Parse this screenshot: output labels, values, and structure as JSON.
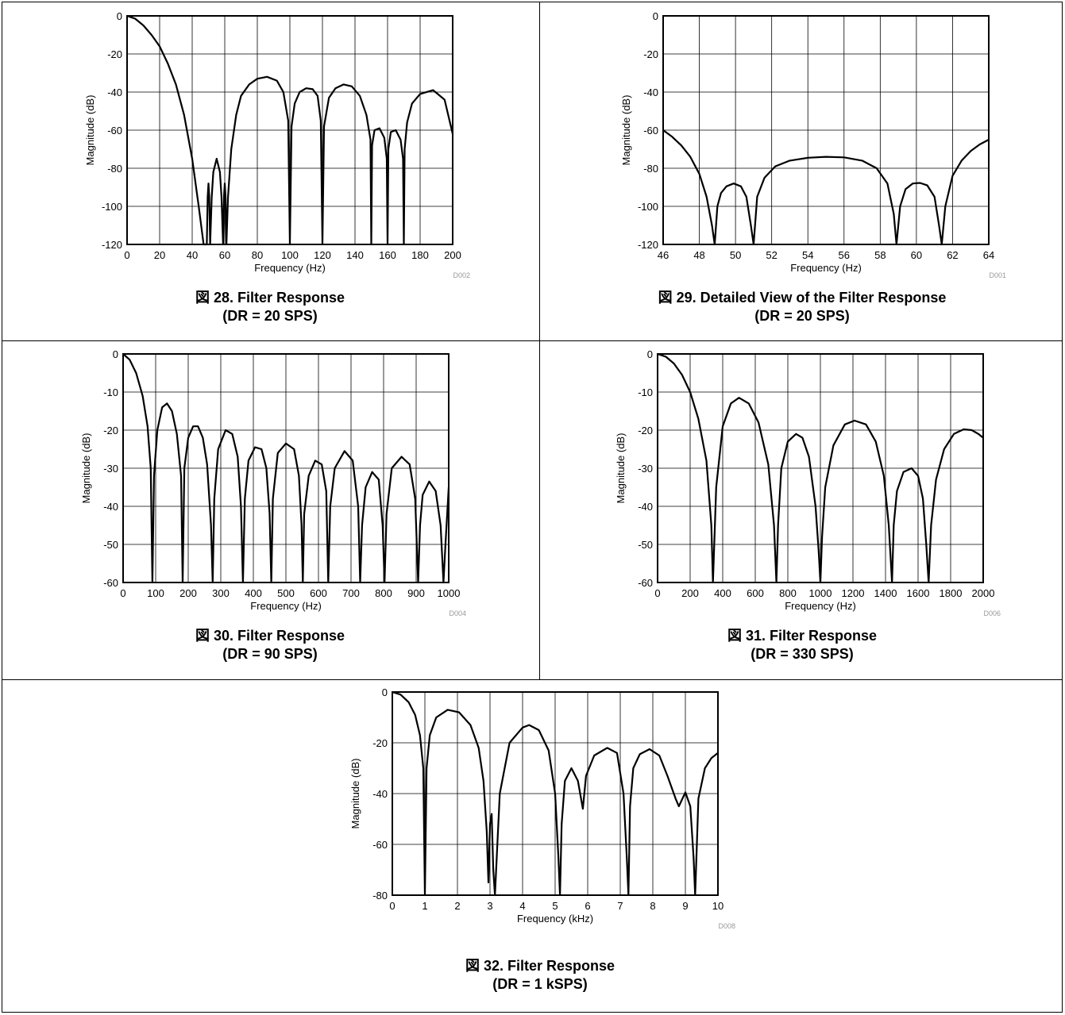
{
  "chart_data": [
    {
      "type": "line",
      "caption_line1": "図 28. Filter Response",
      "caption_line2": "(DR = 20 SPS)",
      "xlabel": "Frequency (Hz)",
      "ylabel": "Magnitude (dB)",
      "code": "D002",
      "xlim": [
        0,
        200
      ],
      "ylim": [
        -120,
        0
      ],
      "xticks": [
        0,
        20,
        40,
        60,
        80,
        100,
        120,
        140,
        160,
        180,
        200
      ],
      "yticks": [
        0,
        -20,
        -40,
        -60,
        -80,
        -100,
        -120
      ],
      "series": [
        {
          "x": [
            0,
            5,
            10,
            15,
            20,
            25,
            30,
            35,
            40,
            44,
            47,
            49,
            49.5,
            50,
            50.5,
            51,
            52,
            53,
            55,
            57,
            58,
            59,
            59.5,
            60,
            60.5,
            61,
            62,
            64,
            67,
            70,
            75,
            80,
            86,
            92,
            96,
            99,
            100,
            101,
            103,
            106,
            110,
            114,
            117,
            119,
            120,
            121,
            124,
            128,
            133,
            138,
            143,
            147,
            149.5,
            150,
            150.5,
            152,
            155,
            158,
            159.5,
            160,
            160.5,
            162,
            165,
            168,
            169.5,
            170,
            170.5,
            172,
            175,
            180,
            188,
            195,
            200
          ],
          "y": [
            0,
            -1.5,
            -5,
            -10,
            -16,
            -25,
            -36,
            -52,
            -75,
            -100,
            -120,
            -120,
            -95,
            -88,
            -95,
            -120,
            -95,
            -82,
            -75,
            -82,
            -95,
            -120,
            -95,
            -88,
            -95,
            -120,
            -95,
            -70,
            -52,
            -42,
            -36,
            -33,
            -32,
            -34,
            -40,
            -55,
            -120,
            -58,
            -46,
            -40,
            -38,
            -38.5,
            -42,
            -55,
            -120,
            -58,
            -43,
            -38,
            -36,
            -37,
            -42,
            -52,
            -65,
            -120,
            -68,
            -60,
            -59,
            -64,
            -75,
            -120,
            -70,
            -61,
            -60,
            -65,
            -75,
            -120,
            -70,
            -56,
            -46,
            -41,
            -39,
            -44,
            -62
          ]
        }
      ]
    },
    {
      "type": "line",
      "caption_line1": "図 29. Detailed View of the Filter Response",
      "caption_line2": "(DR = 20 SPS)",
      "xlabel": "Frequency (Hz)",
      "ylabel": "Magnitude (dB)",
      "code": "D001",
      "xlim": [
        46,
        64
      ],
      "ylim": [
        -120,
        0
      ],
      "xticks": [
        46,
        48,
        50,
        52,
        54,
        56,
        58,
        60,
        62,
        64
      ],
      "yticks": [
        0,
        -20,
        -40,
        -60,
        -80,
        -100,
        -120
      ],
      "series": [
        {
          "x": [
            46,
            46.5,
            47,
            47.5,
            48,
            48.4,
            48.7,
            48.85,
            49,
            49.2,
            49.5,
            49.9,
            50.3,
            50.6,
            50.85,
            51,
            51.2,
            51.6,
            52.2,
            53,
            54,
            55,
            56,
            57,
            57.8,
            58.4,
            58.75,
            58.9,
            59.1,
            59.4,
            59.8,
            60.2,
            60.6,
            61,
            61.25,
            61.4,
            61.6,
            62,
            62.5,
            63,
            63.5,
            64
          ],
          "y": [
            -60,
            -63.5,
            -68,
            -74,
            -83,
            -95,
            -110,
            -120,
            -100,
            -93,
            -89.5,
            -88,
            -89.5,
            -95,
            -110,
            -120,
            -95,
            -85,
            -79,
            -76,
            -74.5,
            -74,
            -74.3,
            -76,
            -80,
            -88,
            -104,
            -120,
            -100,
            -91,
            -88,
            -87.7,
            -89,
            -95,
            -110,
            -120,
            -100,
            -84,
            -76,
            -71,
            -67.5,
            -65
          ]
        }
      ]
    },
    {
      "type": "line",
      "caption_line1": "図 30. Filter Response",
      "caption_line2": "(DR = 90 SPS)",
      "xlabel": "Frequency (Hz)",
      "ylabel": "Magnitude (dB)",
      "code": "D004",
      "xlim": [
        0,
        1000
      ],
      "ylim": [
        -60,
        0
      ],
      "xticks": [
        0,
        100,
        200,
        300,
        400,
        500,
        600,
        700,
        800,
        900,
        1000
      ],
      "yticks": [
        0,
        -10,
        -20,
        -30,
        -40,
        -50,
        -60
      ],
      "series": [
        {
          "x": [
            0,
            20,
            40,
            60,
            75,
            85,
            90,
            95,
            105,
            120,
            135,
            150,
            165,
            178,
            183,
            188,
            200,
            215,
            230,
            245,
            258,
            270,
            275,
            280,
            292,
            315,
            335,
            352,
            362,
            368,
            374,
            385,
            405,
            425,
            440,
            450,
            455,
            460,
            475,
            500,
            525,
            540,
            548,
            552,
            556,
            570,
            590,
            610,
            624,
            630,
            636,
            650,
            680,
            705,
            722,
            728,
            734,
            745,
            765,
            785,
            797,
            803,
            809,
            825,
            855,
            880,
            897,
            906,
            912,
            920,
            940,
            960,
            975,
            984,
            990,
            1000
          ],
          "y": [
            0,
            -1.5,
            -5,
            -11,
            -19,
            -30,
            -60,
            -32,
            -20,
            -14,
            -13,
            -15,
            -21,
            -32,
            -60,
            -30,
            -22,
            -19,
            -19,
            -22,
            -29,
            -45,
            -60,
            -38,
            -25,
            -20,
            -21,
            -27,
            -40,
            -60,
            -38,
            -28,
            -24.5,
            -25,
            -30,
            -42,
            -60,
            -38,
            -26,
            -23.5,
            -25,
            -32,
            -45,
            -60,
            -42,
            -32,
            -28,
            -29,
            -36,
            -60,
            -40,
            -30,
            -25.5,
            -28,
            -40,
            -60,
            -45,
            -35,
            -31,
            -33,
            -45,
            -60,
            -42,
            -30,
            -27,
            -29,
            -38,
            -60,
            -45,
            -37,
            -33.5,
            -36,
            -45,
            -60,
            -50,
            -35
          ]
        }
      ]
    },
    {
      "type": "line",
      "caption_line1": "図 31. Filter Response",
      "caption_line2": "(DR = 330 SPS)",
      "xlabel": "Frequency (Hz)",
      "ylabel": "Magnitude (dB)",
      "code": "D006",
      "xlim": [
        0,
        2000
      ],
      "ylim": [
        -60,
        0
      ],
      "xticks": [
        0,
        200,
        400,
        600,
        800,
        1000,
        1200,
        1400,
        1600,
        1800,
        2000
      ],
      "yticks": [
        0,
        -10,
        -20,
        -30,
        -40,
        -50,
        -60
      ],
      "series": [
        {
          "x": [
            0,
            50,
            100,
            150,
            200,
            250,
            300,
            330,
            340,
            360,
            400,
            450,
            500,
            560,
            620,
            680,
            715,
            730,
            740,
            760,
            800,
            850,
            890,
            930,
            970,
            990,
            1000,
            1010,
            1030,
            1080,
            1150,
            1210,
            1280,
            1340,
            1390,
            1420,
            1440,
            1450,
            1470,
            1510,
            1560,
            1600,
            1630,
            1650,
            1665,
            1680,
            1710,
            1760,
            1820,
            1880,
            1930,
            1970,
            2000
          ],
          "y": [
            0,
            -0.7,
            -2.5,
            -5.5,
            -10,
            -17,
            -28,
            -45,
            -60,
            -35,
            -19,
            -13,
            -11.5,
            -13,
            -18,
            -29,
            -45,
            -60,
            -45,
            -30,
            -23,
            -21,
            -22,
            -27,
            -40,
            -52,
            -60,
            -48,
            -35,
            -24,
            -18.5,
            -17.5,
            -18.5,
            -23,
            -32,
            -45,
            -60,
            -45,
            -36,
            -31,
            -30,
            -32,
            -38,
            -50,
            -60,
            -45,
            -33,
            -25,
            -21,
            -19.8,
            -20,
            -21,
            -22
          ]
        }
      ]
    },
    {
      "type": "line",
      "caption_line1": "図 32. Filter Response",
      "caption_line2": "(DR = 1 kSPS)",
      "xlabel": "Frequency (kHz)",
      "ylabel": "Magnitude (dB)",
      "code": "D008",
      "xlim": [
        0,
        10
      ],
      "ylim": [
        -80,
        0
      ],
      "xticks": [
        0,
        1,
        2,
        3,
        4,
        5,
        6,
        7,
        8,
        9,
        10
      ],
      "yticks": [
        0,
        -20,
        -40,
        -60,
        -80
      ],
      "series": [
        {
          "x": [
            0,
            0.25,
            0.5,
            0.7,
            0.85,
            0.95,
            1.0,
            1.05,
            1.15,
            1.35,
            1.7,
            2.05,
            2.4,
            2.65,
            2.8,
            2.9,
            2.95,
            3.0,
            3.05,
            3.1,
            3.15,
            3.3,
            3.6,
            4.0,
            4.2,
            4.5,
            4.8,
            5.0,
            5.1,
            5.15,
            5.2,
            5.3,
            5.5,
            5.7,
            5.85,
            5.95,
            6.2,
            6.6,
            6.9,
            7.1,
            7.2,
            7.25,
            7.3,
            7.4,
            7.6,
            7.9,
            8.2,
            8.45,
            8.7,
            8.8,
            9.0,
            9.15,
            9.25,
            9.3,
            9.4,
            9.6,
            9.8,
            10.0
          ],
          "y": [
            0,
            -1,
            -4,
            -9,
            -17,
            -30,
            -80,
            -30,
            -17,
            -10,
            -7,
            -8,
            -13,
            -22,
            -35,
            -55,
            -75,
            -52,
            -48,
            -70,
            -80,
            -40,
            -20,
            -14,
            -13,
            -15,
            -23,
            -40,
            -65,
            -80,
            -52,
            -35,
            -30,
            -35,
            -46,
            -33,
            -25,
            -22,
            -24,
            -40,
            -65,
            -80,
            -45,
            -30,
            -24.5,
            -22.5,
            -25,
            -33,
            -42,
            -45,
            -39.5,
            -45,
            -65,
            -80,
            -42,
            -30,
            -26,
            -24
          ]
        }
      ]
    }
  ]
}
